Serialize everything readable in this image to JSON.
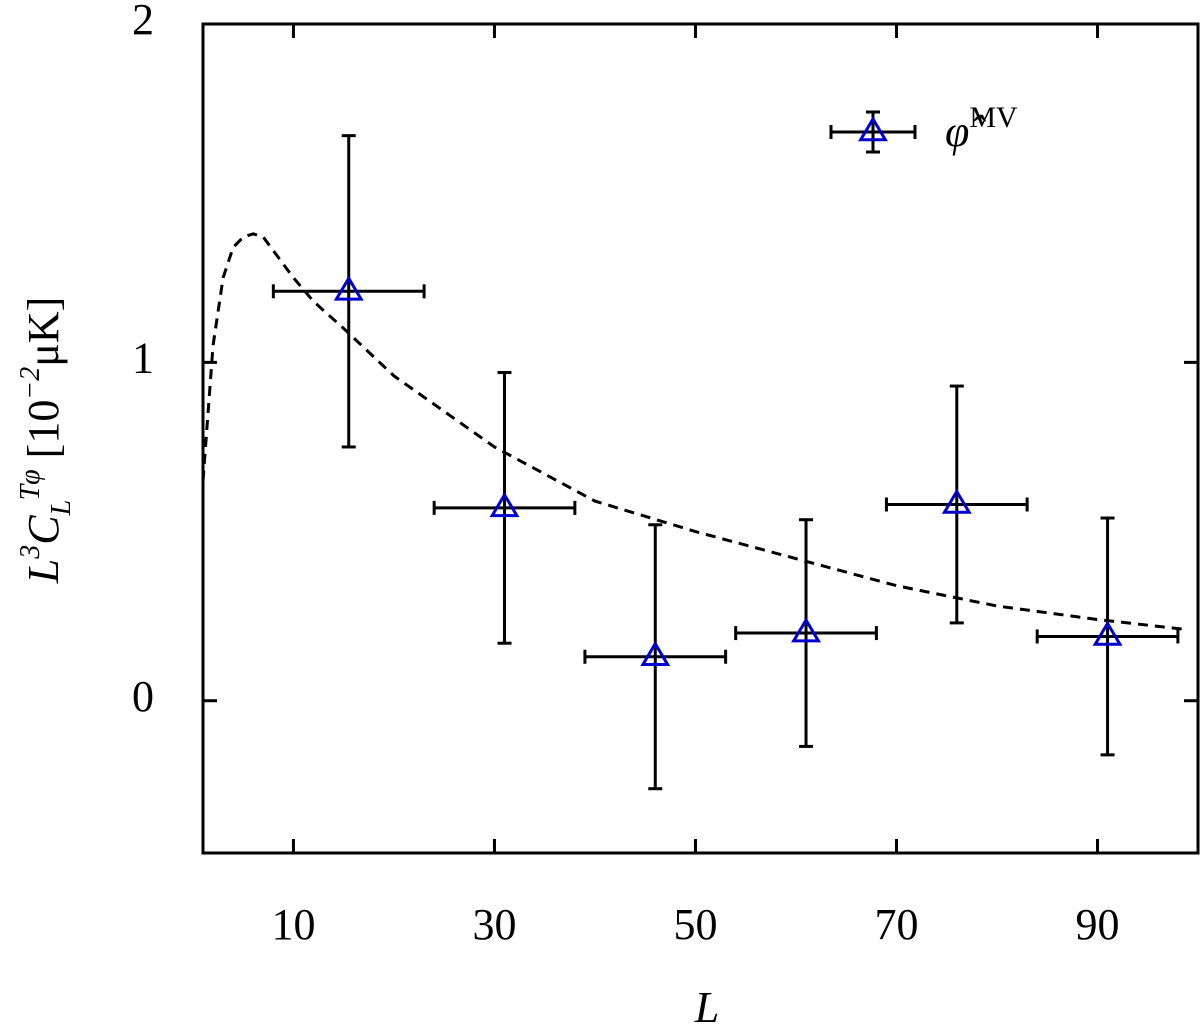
{
  "chart_data": {
    "type": "errorbar",
    "x_label": "L",
    "y_label": [
      {
        "text": "L"
      },
      {
        "sup": "3"
      },
      {
        "text": "C"
      },
      {
        "sub": "L"
      },
      {
        "sup": "Tφ"
      },
      {
        "text": " [10"
      },
      {
        "sup": "−2"
      },
      {
        "text": "μK]"
      }
    ],
    "xlim": [
      1,
      100
    ],
    "xticks": [
      10,
      30,
      50,
      70,
      90
    ],
    "ylim": [
      -0.45,
      2
    ],
    "yticks": [
      0,
      1,
      2
    ],
    "legend": "upper right",
    "series": [
      {
        "name": "φ̂",
        "name_superscript": "MV",
        "color": "#0000cc",
        "x": [
          15.5,
          31,
          46,
          61,
          76,
          91
        ],
        "values": [
          1.21,
          0.57,
          0.13,
          0.2,
          0.58,
          0.19
        ],
        "xerr": [
          7.5,
          7,
          7,
          7,
          7,
          7
        ],
        "yerr": [
          0.46,
          0.4,
          0.39,
          0.335,
          0.35,
          0.35
        ]
      }
    ],
    "model_curve": {
      "color": "#000000",
      "x": [
        1,
        2,
        3,
        4,
        5,
        6,
        7,
        8,
        10,
        12,
        15,
        20,
        30,
        40,
        50,
        60,
        70,
        80,
        90,
        99
      ],
      "values": [
        0.65,
        1.05,
        1.25,
        1.34,
        1.37,
        1.38,
        1.37,
        1.33,
        1.25,
        1.18,
        1.1,
        0.96,
        0.75,
        0.59,
        0.5,
        0.42,
        0.34,
        0.28,
        0.24,
        0.21
      ]
    }
  }
}
